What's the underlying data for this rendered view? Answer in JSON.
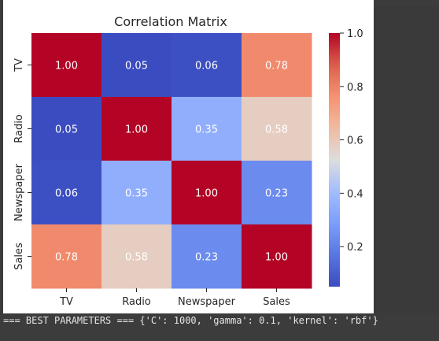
{
  "console": {
    "output_line": "=== BEST PARAMETERS === {'C': 1000, 'gamma': 0.1, 'kernel': 'rbf'}"
  },
  "chart_data": {
    "type": "heatmap",
    "title": "Correlation Matrix",
    "x_labels": [
      "TV",
      "Radio",
      "Newspaper",
      "Sales"
    ],
    "y_labels": [
      "TV",
      "Radio",
      "Newspaper",
      "Sales"
    ],
    "values": [
      [
        1.0,
        0.05,
        0.06,
        0.78
      ],
      [
        0.05,
        1.0,
        0.35,
        0.58
      ],
      [
        0.06,
        0.35,
        1.0,
        0.23
      ],
      [
        0.78,
        0.58,
        0.23,
        1.0
      ]
    ],
    "value_format": "0.00",
    "colormap": "coolwarm",
    "colorbar": {
      "range": [
        0.05,
        1.0
      ],
      "ticks": [
        0.2,
        0.4,
        0.6,
        0.8,
        1.0
      ],
      "tick_labels": [
        "0.2",
        "0.4",
        "0.6",
        "0.8",
        "1.0"
      ]
    },
    "annotation_colors": {
      "light": "#ffffff",
      "dark": "#262626"
    },
    "grid": false,
    "legend": "colorbar-right"
  }
}
